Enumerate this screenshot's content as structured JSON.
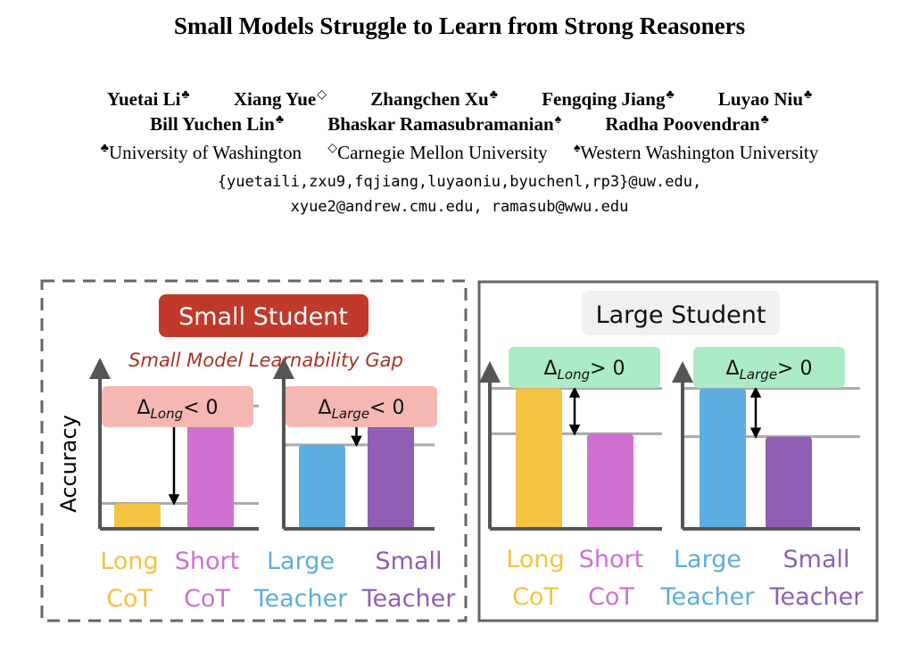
{
  "title": "Small Models Struggle to Learn from Strong Reasoners",
  "authors_line1": [
    {
      "name": "Yuetai Li",
      "mark": "♣"
    },
    {
      "name": "Xiang Yue",
      "mark": "◇"
    },
    {
      "name": "Zhangchen Xu",
      "mark": "♣"
    },
    {
      "name": "Fengqing Jiang",
      "mark": "♣"
    },
    {
      "name": "Luyao Niu",
      "mark": "♣"
    }
  ],
  "authors_line2": [
    {
      "name": "Bill Yuchen Lin",
      "mark": "♣"
    },
    {
      "name": "Bhaskar Ramasubramanian",
      "mark": "♠"
    },
    {
      "name": "Radha Poovendran",
      "mark": "♣"
    }
  ],
  "affiliations": [
    {
      "mark": "♣",
      "name": "University of Washington"
    },
    {
      "mark": "◇",
      "name": "Carnegie Mellon University"
    },
    {
      "mark": "♠",
      "name": "Western Washington University"
    }
  ],
  "emails": [
    "{yuetaili,zxu9,fqjiang,luyaoniu,byuchenl,rp3}@uw.edu,",
    "xyue2@andrew.cmu.edu, ramasub@wwu.edu"
  ],
  "figure": {
    "colors": {
      "long_cot": "#f5c242",
      "short_cot": "#d070d0",
      "large_teacher": "#5dade2",
      "small_teacher": "#8e5fb5",
      "small_student_bg": "#c0392b",
      "gap_text": "#a93226",
      "neg_delta_bg": "#f5b7b1",
      "pos_delta_bg": "#abebc6",
      "large_student_bg": "#f0f0f0"
    },
    "small_student": {
      "header": "Small Student",
      "subtitle": "Small Model Learnability Gap",
      "y_axis_label": "Accuracy",
      "chart_long": {
        "delta_base": "Δ",
        "delta_sub": "Long",
        "delta_rel": "< 0",
        "bar1_value": 0.17,
        "bar2_value": 0.82,
        "label1_l1": "Long",
        "label1_l2": "CoT",
        "label2_l1": "Short",
        "label2_l2": "CoT"
      },
      "chart_large": {
        "delta_base": "Δ",
        "delta_sub": "Large",
        "delta_rel": "< 0",
        "bar1_value": 0.56,
        "bar2_value": 0.94,
        "label1_l1": "Large",
        "label1_l2": "Teacher",
        "label2_l1": "Small",
        "label2_l2": "Teacher"
      }
    },
    "large_student": {
      "header": "Large Student",
      "chart_long": {
        "delta_base": "Δ",
        "delta_sub": "Long",
        "delta_rel": "> 0",
        "bar1_value": 0.96,
        "bar2_value": 0.65,
        "label1_l1": "Long",
        "label1_l2": "CoT",
        "label2_l1": "Short",
        "label2_l2": "CoT"
      },
      "chart_large": {
        "delta_base": "Δ",
        "delta_sub": "Large",
        "delta_rel": "> 0",
        "bar1_value": 0.96,
        "bar2_value": 0.63,
        "label1_l1": "Large",
        "label1_l2": "Teacher",
        "label2_l1": "Small",
        "label2_l2": "Teacher"
      }
    }
  }
}
